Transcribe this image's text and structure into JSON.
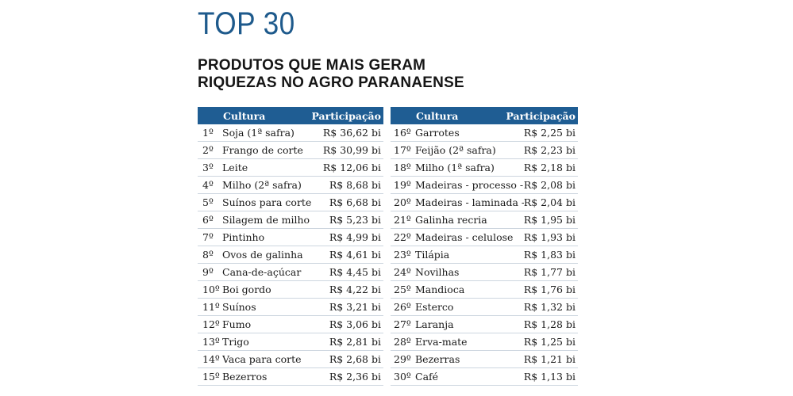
{
  "headline": "TOP 30",
  "subtitle_line1": "PRODUTOS QUE MAIS GERAM",
  "subtitle_line2": "RIQUEZAS NO AGRO PARANAENSE",
  "columns": {
    "crop": "Cultura",
    "share": "Participação"
  },
  "left_rows": [
    {
      "rank": "1º",
      "crop": "Soja (1ª safra)",
      "value": "R$ 36,62 bi"
    },
    {
      "rank": "2º",
      "crop": "Frango de corte",
      "value": "R$ 30,99 bi"
    },
    {
      "rank": "3º",
      "crop": "Leite",
      "value": "R$ 12,06 bi"
    },
    {
      "rank": "4º",
      "crop": "Milho (2ª safra)",
      "value": "R$ 8,68 bi"
    },
    {
      "rank": "5º",
      "crop": "Suínos para corte",
      "value": "R$ 6,68 bi"
    },
    {
      "rank": "6º",
      "crop": "Silagem de milho",
      "value": "R$ 5,23 bi"
    },
    {
      "rank": "7º",
      "crop": "Pintinho",
      "value": "R$ 4,99 bi"
    },
    {
      "rank": "8º",
      "crop": "Ovos de galinha",
      "value": "R$ 4,61 bi"
    },
    {
      "rank": "9º",
      "crop": "Cana-de-açúcar",
      "value": "R$ 4,45 bi"
    },
    {
      "rank": "10º",
      "crop": "Boi gordo",
      "value": "R$ 4,22 bi"
    },
    {
      "rank": "11º",
      "crop": "Suínos",
      "value": "R$ 3,21 bi"
    },
    {
      "rank": "12º",
      "crop": "Fumo",
      "value": "R$ 3,06 bi"
    },
    {
      "rank": "13º",
      "crop": "Trigo",
      "value": "R$ 2,81 bi"
    },
    {
      "rank": "14º",
      "crop": "Vaca para corte",
      "value": "R$ 2,68 bi"
    },
    {
      "rank": "15º",
      "crop": "Bezerros",
      "value": "R$ 2,36 bi"
    }
  ],
  "right_rows": [
    {
      "rank": "16º",
      "crop": "Garrotes",
      "value": "R$ 2,25 bi"
    },
    {
      "rank": "17º",
      "crop": "Feijão (2ª safra)",
      "value": "R$ 2,23 bi"
    },
    {
      "rank": "18º",
      "crop": "Milho (1ª safra)",
      "value": "R$ 2,18 bi"
    },
    {
      "rank": "19º",
      "crop": "Madeiras - processo - pinus",
      "value": "R$ 2,08 bi"
    },
    {
      "rank": "20º",
      "crop": "Madeiras - laminada - pinus",
      "value": "R$ 2,04 bi"
    },
    {
      "rank": "21º",
      "crop": "Galinha recria",
      "value": "R$ 1,95 bi"
    },
    {
      "rank": "22º",
      "crop": "Madeiras - celulose",
      "value": "R$ 1,93 bi"
    },
    {
      "rank": "23º",
      "crop": "Tilápia",
      "value": "R$ 1,83 bi"
    },
    {
      "rank": "24º",
      "crop": "Novilhas",
      "value": "R$ 1,77 bi"
    },
    {
      "rank": "25º",
      "crop": "Mandioca",
      "value": "R$ 1,76 bi"
    },
    {
      "rank": "26º",
      "crop": "Esterco",
      "value": "R$ 1,32 bi"
    },
    {
      "rank": "27º",
      "crop": "Laranja",
      "value": "R$ 1,28 bi"
    },
    {
      "rank": "28º",
      "crop": "Erva-mate",
      "value": "R$ 1,25 bi"
    },
    {
      "rank": "29º",
      "crop": "Bezerras",
      "value": "R$ 1,21 bi"
    },
    {
      "rank": "30º",
      "crop": "Café",
      "value": "R$ 1,13 bi"
    }
  ],
  "colors": {
    "headline": "#1e5a8c",
    "header_bg": "#1f5d93",
    "header_text": "#ffffff",
    "row_divider": "#cdd6df"
  }
}
